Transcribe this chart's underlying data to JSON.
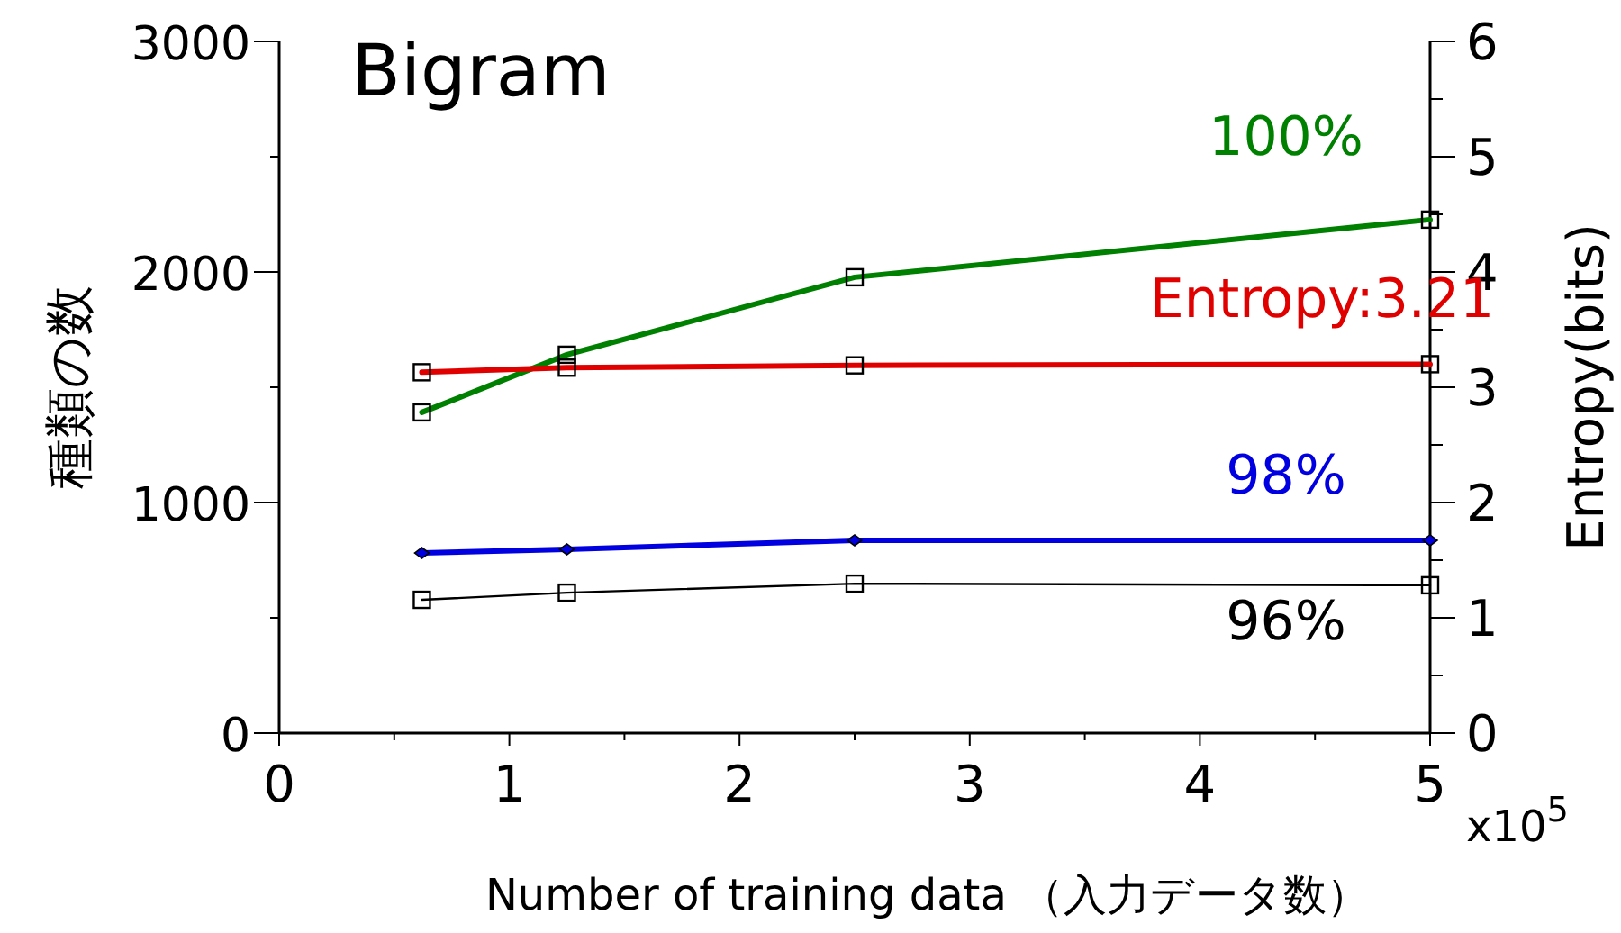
{
  "chart_data": {
    "type": "line",
    "title": "Bigram",
    "xlabel": "Number of  training data （入力データ数）",
    "ylabel": "種類の数",
    "y2label": "Entropy(bits)",
    "annotations": [
      "x10$^{5}$"
    ],
    "xlim": [
      0,
      5
    ],
    "xticks": [
      0,
      {
        "value": 0.5,
        "label": null
      },
      1,
      {
        "value": 1.5,
        "label": null
      },
      2,
      {
        "value": 2.5,
        "label": null
      },
      3,
      {
        "value": 3.5,
        "label": null
      },
      4,
      {
        "value": 4.5,
        "label": null
      },
      5
    ],
    "ylim": [
      0,
      3000
    ],
    "yticks": [
      0,
      {
        "value": 500,
        "label": null
      },
      1000,
      {
        "value": 1500,
        "label": null
      },
      2000,
      {
        "value": 2500,
        "label": null
      },
      3000
    ],
    "y2lim": [
      0,
      6
    ],
    "y2ticks": [
      0,
      {
        "value": 0.5,
        "label": null
      },
      1,
      {
        "value": 1.5,
        "label": null
      },
      2,
      {
        "value": 2.5,
        "label": null
      },
      3,
      {
        "value": 3.5,
        "label": null
      },
      4,
      {
        "value": 4.5,
        "label": null
      },
      5,
      {
        "value": 5.5,
        "label": null
      },
      6
    ],
    "grid": false,
    "line_style": "solid",
    "series": [
      {
        "name": "100%",
        "color": "#008000",
        "marker": "square",
        "x": [
          0.62,
          1.25,
          2.5,
          5
        ],
        "values": [
          1391,
          1641,
          1977,
          2227
        ]
      },
      {
        "name": "Entropy:3.21",
        "color": "#e00000",
        "marker": "square",
        "axis": "y2",
        "x": [
          0.62,
          1.25,
          2.5,
          5
        ],
        "values": [
          3.13,
          3.17,
          3.19,
          3.2
        ]
      },
      {
        "name": "98%",
        "color": "#0000e0",
        "marker": "diamond",
        "x": [
          0.62,
          1.25,
          2.5,
          5
        ],
        "values": [
          781,
          797,
          836,
          836
        ]
      },
      {
        "name": "96%",
        "color": "#000000",
        "marker": "square",
        "x": [
          0.62,
          1.25,
          2.5,
          5
        ],
        "values": [
          578,
          609,
          648,
          641
        ]
      }
    ]
  }
}
